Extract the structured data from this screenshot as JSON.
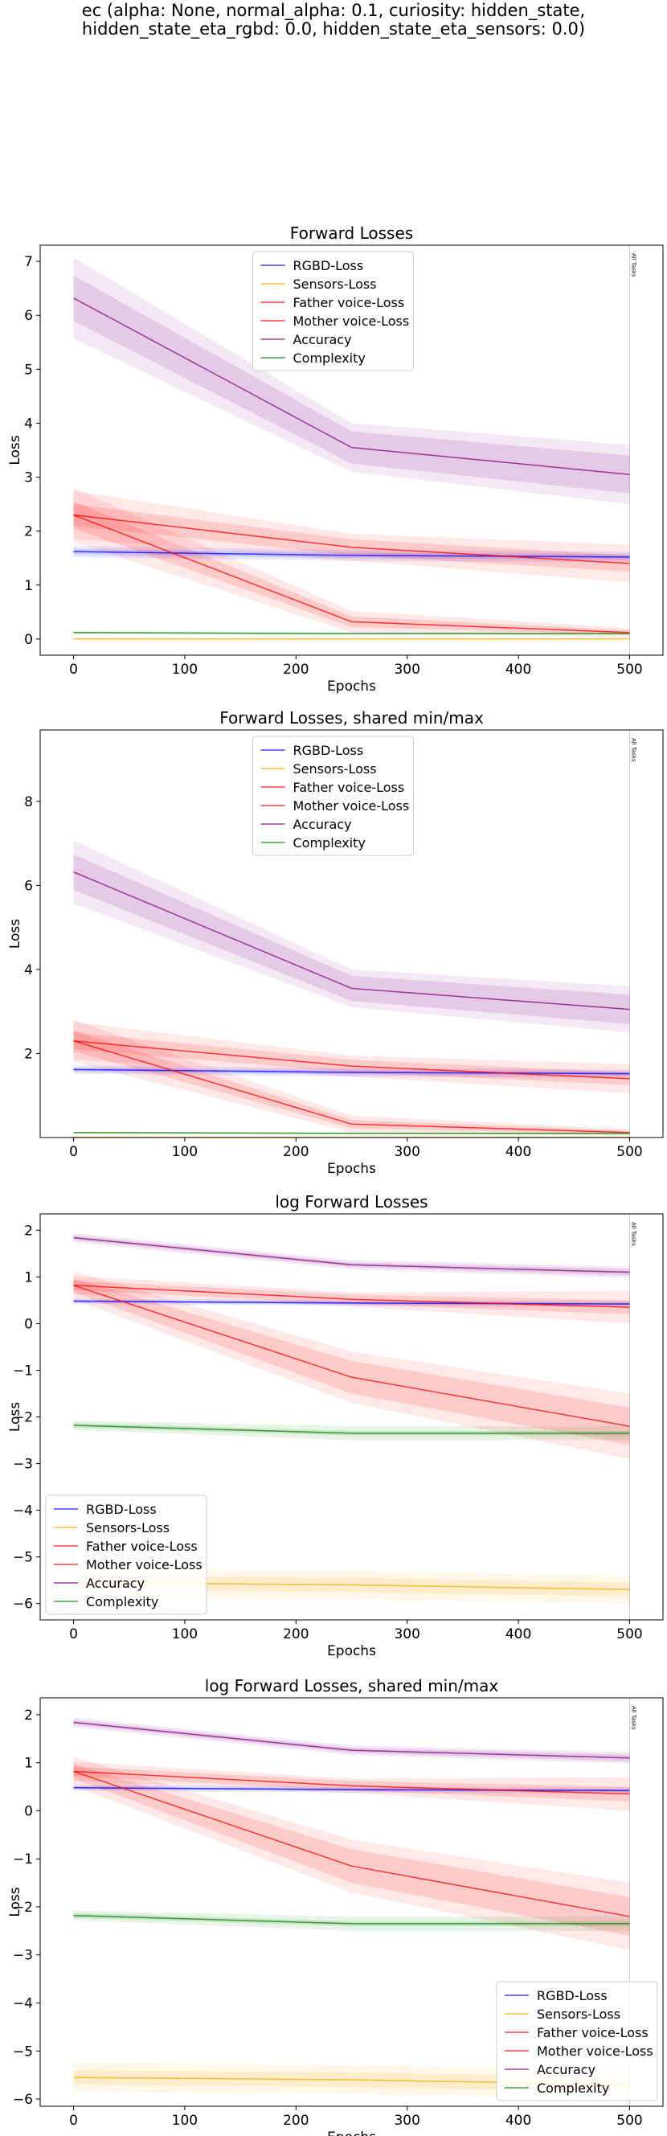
{
  "figure": {
    "title_line1": "ec (alpha: None, normal_alpha: 0.1, curiosity: hidden_state,",
    "title_line2": "hidden_state_eta_rgbd: 0.0, hidden_state_eta_sensors: 0.0)"
  },
  "chart_data": [
    {
      "type": "line",
      "title": "Forward Losses",
      "xlabel": "Epochs",
      "ylabel": "Loss",
      "xlim": [
        -30,
        530
      ],
      "ylim": [
        -0.3,
        7.3
      ],
      "xticks": [
        0,
        100,
        200,
        300,
        400,
        500
      ],
      "yticks": [
        0,
        1,
        2,
        3,
        4,
        5,
        6,
        7
      ],
      "vline": {
        "x": 500,
        "label": "All Tasks"
      },
      "legend_position": "upper-center",
      "x": [
        0,
        250,
        500
      ],
      "series": [
        {
          "name": "RGBD-Loss",
          "color": "#0000ff",
          "values": [
            1.62,
            1.55,
            1.52
          ],
          "band_inner": [
            0.05,
            0.05,
            0.05
          ],
          "band_outer": [
            0.1,
            0.1,
            0.1
          ]
        },
        {
          "name": "Sensors-Loss",
          "color": "#ffa500",
          "values": [
            0.004,
            0.004,
            0.004
          ],
          "band_inner": [
            0.003,
            0.003,
            0.003
          ],
          "band_outer": [
            0.006,
            0.006,
            0.006
          ]
        },
        {
          "name": "Father voice-Loss",
          "color": "#ff0000",
          "values": [
            2.3,
            1.7,
            1.4
          ],
          "band_inner": [
            0.2,
            0.15,
            0.15
          ],
          "band_outer": [
            0.45,
            0.25,
            0.35
          ]
        },
        {
          "name": "Mother voice-Loss",
          "color": "#ff0000",
          "values": [
            2.3,
            0.32,
            0.12
          ],
          "band_inner": [
            0.25,
            0.1,
            0.04
          ],
          "band_outer": [
            0.5,
            0.2,
            0.08
          ]
        },
        {
          "name": "Accuracy",
          "color": "#800080",
          "values": [
            6.32,
            3.55,
            3.05
          ],
          "band_inner": [
            0.42,
            0.3,
            0.35
          ],
          "band_outer": [
            0.75,
            0.45,
            0.55
          ]
        },
        {
          "name": "Complexity",
          "color": "#008000",
          "values": [
            0.12,
            0.1,
            0.1
          ],
          "band_inner": [
            0.01,
            0.01,
            0.01
          ],
          "band_outer": [
            0.02,
            0.02,
            0.02
          ]
        }
      ]
    },
    {
      "type": "line",
      "title": "Forward Losses, shared min/max",
      "xlabel": "Epochs",
      "ylabel": "Loss",
      "xlim": [
        -30,
        530
      ],
      "ylim": [
        0.0,
        9.7
      ],
      "xticks": [
        0,
        100,
        200,
        300,
        400,
        500
      ],
      "yticks": [
        2,
        4,
        6,
        8
      ],
      "vline": {
        "x": 500,
        "label": "All Tasks"
      },
      "legend_position": "upper-center",
      "x": [
        0,
        250,
        500
      ],
      "series": [
        {
          "name": "RGBD-Loss",
          "color": "#0000ff",
          "values": [
            1.62,
            1.55,
            1.52
          ],
          "band_inner": [
            0.05,
            0.05,
            0.05
          ],
          "band_outer": [
            0.1,
            0.1,
            0.1
          ]
        },
        {
          "name": "Sensors-Loss",
          "color": "#ffa500",
          "values": [
            0.004,
            0.004,
            0.004
          ],
          "band_inner": [
            0.003,
            0.003,
            0.003
          ],
          "band_outer": [
            0.006,
            0.006,
            0.006
          ]
        },
        {
          "name": "Father voice-Loss",
          "color": "#ff0000",
          "values": [
            2.3,
            1.7,
            1.4
          ],
          "band_inner": [
            0.2,
            0.15,
            0.15
          ],
          "band_outer": [
            0.45,
            0.25,
            0.35
          ]
        },
        {
          "name": "Mother voice-Loss",
          "color": "#ff0000",
          "values": [
            2.3,
            0.32,
            0.12
          ],
          "band_inner": [
            0.25,
            0.1,
            0.04
          ],
          "band_outer": [
            0.5,
            0.2,
            0.08
          ]
        },
        {
          "name": "Accuracy",
          "color": "#800080",
          "values": [
            6.32,
            3.55,
            3.05
          ],
          "band_inner": [
            0.42,
            0.3,
            0.35
          ],
          "band_outer": [
            0.75,
            0.45,
            0.55
          ]
        },
        {
          "name": "Complexity",
          "color": "#008000",
          "values": [
            0.12,
            0.1,
            0.1
          ],
          "band_inner": [
            0.01,
            0.01,
            0.01
          ],
          "band_outer": [
            0.02,
            0.02,
            0.02
          ]
        }
      ]
    },
    {
      "type": "line",
      "title": "log Forward Losses",
      "xlabel": "Epochs",
      "ylabel": "Loss",
      "xlim": [
        -30,
        530
      ],
      "ylim": [
        -6.35,
        2.35
      ],
      "xticks": [
        0,
        100,
        200,
        300,
        400,
        500
      ],
      "yticks": [
        -6,
        -5,
        -4,
        -3,
        -2,
        -1,
        0,
        1,
        2
      ],
      "vline": {
        "x": 500,
        "label": "All Tasks"
      },
      "legend_position": "lower-left",
      "x": [
        0,
        250,
        500
      ],
      "series": [
        {
          "name": "RGBD-Loss",
          "color": "#0000ff",
          "values": [
            0.48,
            0.44,
            0.42
          ],
          "band_inner": [
            0.03,
            0.03,
            0.03
          ],
          "band_outer": [
            0.06,
            0.06,
            0.06
          ]
        },
        {
          "name": "Sensors-Loss",
          "color": "#ffa500",
          "values": [
            -5.55,
            -5.6,
            -5.7
          ],
          "band_inner": [
            0.15,
            0.15,
            0.15
          ],
          "band_outer": [
            0.3,
            0.3,
            0.3
          ]
        },
        {
          "name": "Father voice-Loss",
          "color": "#ff0000",
          "values": [
            0.82,
            0.52,
            0.35
          ],
          "band_inner": [
            0.1,
            0.1,
            0.15
          ],
          "band_outer": [
            0.2,
            0.15,
            0.35
          ]
        },
        {
          "name": "Mother voice-Loss",
          "color": "#ff0000",
          "values": [
            0.82,
            -1.15,
            -2.2
          ],
          "band_inner": [
            0.15,
            0.35,
            0.4
          ],
          "band_outer": [
            0.3,
            0.55,
            0.7
          ]
        },
        {
          "name": "Accuracy",
          "color": "#800080",
          "values": [
            1.84,
            1.26,
            1.1
          ],
          "band_inner": [
            0.05,
            0.05,
            0.07
          ],
          "band_outer": [
            0.1,
            0.1,
            0.12
          ]
        },
        {
          "name": "Complexity",
          "color": "#008000",
          "values": [
            -2.18,
            -2.35,
            -2.35
          ],
          "band_inner": [
            0.05,
            0.05,
            0.05
          ],
          "band_outer": [
            0.1,
            0.15,
            0.15
          ]
        }
      ]
    },
    {
      "type": "line",
      "title": "log Forward Losses, shared min/max",
      "xlabel": "Epochs",
      "ylabel": "Loss",
      "xlim": [
        -30,
        530
      ],
      "ylim": [
        -6.15,
        2.35
      ],
      "xticks": [
        0,
        100,
        200,
        300,
        400,
        500
      ],
      "yticks": [
        -6,
        -5,
        -4,
        -3,
        -2,
        -1,
        0,
        1,
        2
      ],
      "vline": {
        "x": 500,
        "label": "All Tasks"
      },
      "legend_position": "lower-right",
      "x": [
        0,
        250,
        500
      ],
      "series": [
        {
          "name": "RGBD-Loss",
          "color": "#0000ff",
          "values": [
            0.48,
            0.44,
            0.42
          ],
          "band_inner": [
            0.03,
            0.03,
            0.03
          ],
          "band_outer": [
            0.06,
            0.06,
            0.06
          ]
        },
        {
          "name": "Sensors-Loss",
          "color": "#ffa500",
          "values": [
            -5.55,
            -5.6,
            -5.7
          ],
          "band_inner": [
            0.15,
            0.15,
            0.15
          ],
          "band_outer": [
            0.3,
            0.3,
            0.3
          ]
        },
        {
          "name": "Father voice-Loss",
          "color": "#ff0000",
          "values": [
            0.82,
            0.52,
            0.35
          ],
          "band_inner": [
            0.1,
            0.1,
            0.15
          ],
          "band_outer": [
            0.2,
            0.15,
            0.35
          ]
        },
        {
          "name": "Mother voice-Loss",
          "color": "#ff0000",
          "values": [
            0.82,
            -1.15,
            -2.2
          ],
          "band_inner": [
            0.15,
            0.35,
            0.4
          ],
          "band_outer": [
            0.3,
            0.55,
            0.7
          ]
        },
        {
          "name": "Accuracy",
          "color": "#800080",
          "values": [
            1.84,
            1.26,
            1.1
          ],
          "band_inner": [
            0.05,
            0.05,
            0.07
          ],
          "band_outer": [
            0.1,
            0.1,
            0.12
          ]
        },
        {
          "name": "Complexity",
          "color": "#008000",
          "values": [
            -2.18,
            -2.35,
            -2.35
          ],
          "band_inner": [
            0.05,
            0.05,
            0.05
          ],
          "band_outer": [
            0.1,
            0.15,
            0.15
          ]
        }
      ]
    }
  ]
}
